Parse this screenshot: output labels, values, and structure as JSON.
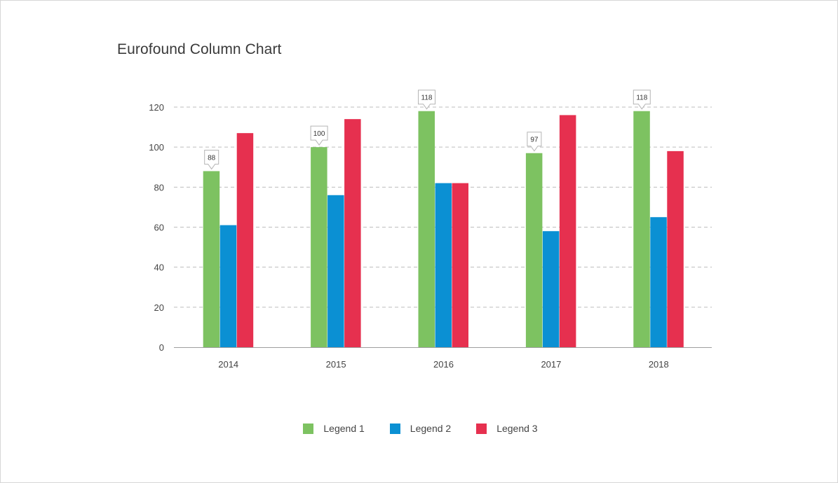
{
  "colors": {
    "series1": "#7dc261",
    "series2": "#0b90d3",
    "series3": "#e6304f",
    "grid": "#bdbdbd",
    "axis": "#9e9e9e",
    "text": "#444444"
  },
  "chart_data": {
    "type": "bar",
    "title": "Eurofound Column Chart",
    "xlabel": "",
    "ylabel": "",
    "categories": [
      "2014",
      "2015",
      "2016",
      "2017",
      "2018"
    ],
    "ylim": [
      0,
      120
    ],
    "yticks": [
      "0",
      "20",
      "40",
      "60",
      "80",
      "100",
      "120"
    ],
    "grid": true,
    "legend_position": "bottom-center",
    "series": [
      {
        "name": "Legend 1",
        "values": [
          88,
          100,
          118,
          97,
          118
        ]
      },
      {
        "name": "Legend 2",
        "values": [
          61,
          76,
          82,
          58,
          65
        ]
      },
      {
        "name": "Legend 3",
        "values": [
          107,
          114,
          82,
          116,
          98
        ]
      }
    ],
    "callouts": [
      {
        "category": "2014",
        "label": "88"
      },
      {
        "category": "2015",
        "label": "100"
      },
      {
        "category": "2016",
        "label": "118"
      },
      {
        "category": "2017",
        "label": "97"
      },
      {
        "category": "2018",
        "label": "118"
      }
    ]
  }
}
